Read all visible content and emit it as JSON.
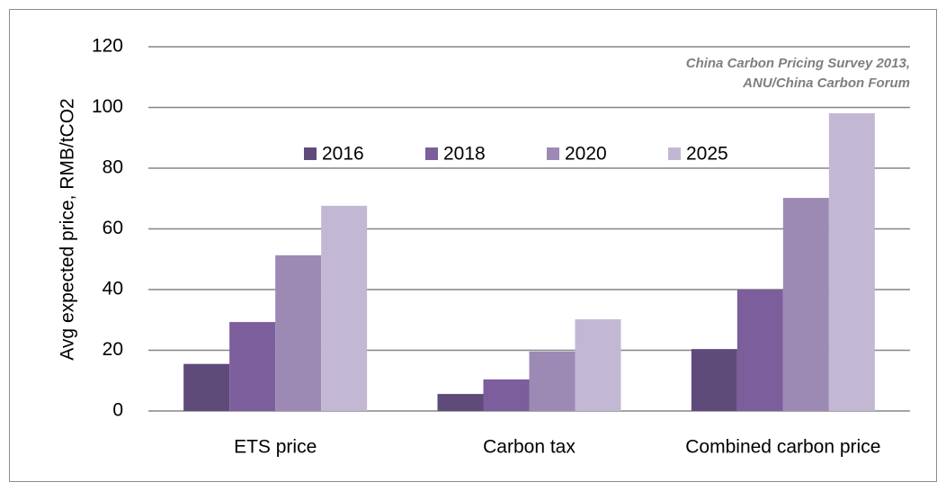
{
  "chart_data": {
    "type": "bar",
    "y_label": "Avg expected price, RMB/tCO2",
    "annotation": [
      "China Carbon Pricing Survey 2013,",
      "ANU/China Carbon Forum"
    ],
    "categories": [
      "ETS price",
      "Carbon tax",
      "Combined carbon price"
    ],
    "series": [
      {
        "name": "2016",
        "color": "#5f4b7a",
        "values": [
          15.5,
          5.6,
          20.4
        ]
      },
      {
        "name": "2018",
        "color": "#7b5e9b",
        "values": [
          29.3,
          10.4,
          40
        ]
      },
      {
        "name": "2020",
        "color": "#9c8ab5",
        "values": [
          51.3,
          19.6,
          70.2
        ]
      },
      {
        "name": "2025",
        "color": "#c3b8d3",
        "values": [
          67.6,
          30.2,
          98.1
        ]
      }
    ],
    "ylim": [
      0,
      120
    ],
    "yticks": [
      0,
      20,
      40,
      60,
      80,
      100,
      120
    ],
    "grid": true,
    "legend": "top"
  }
}
